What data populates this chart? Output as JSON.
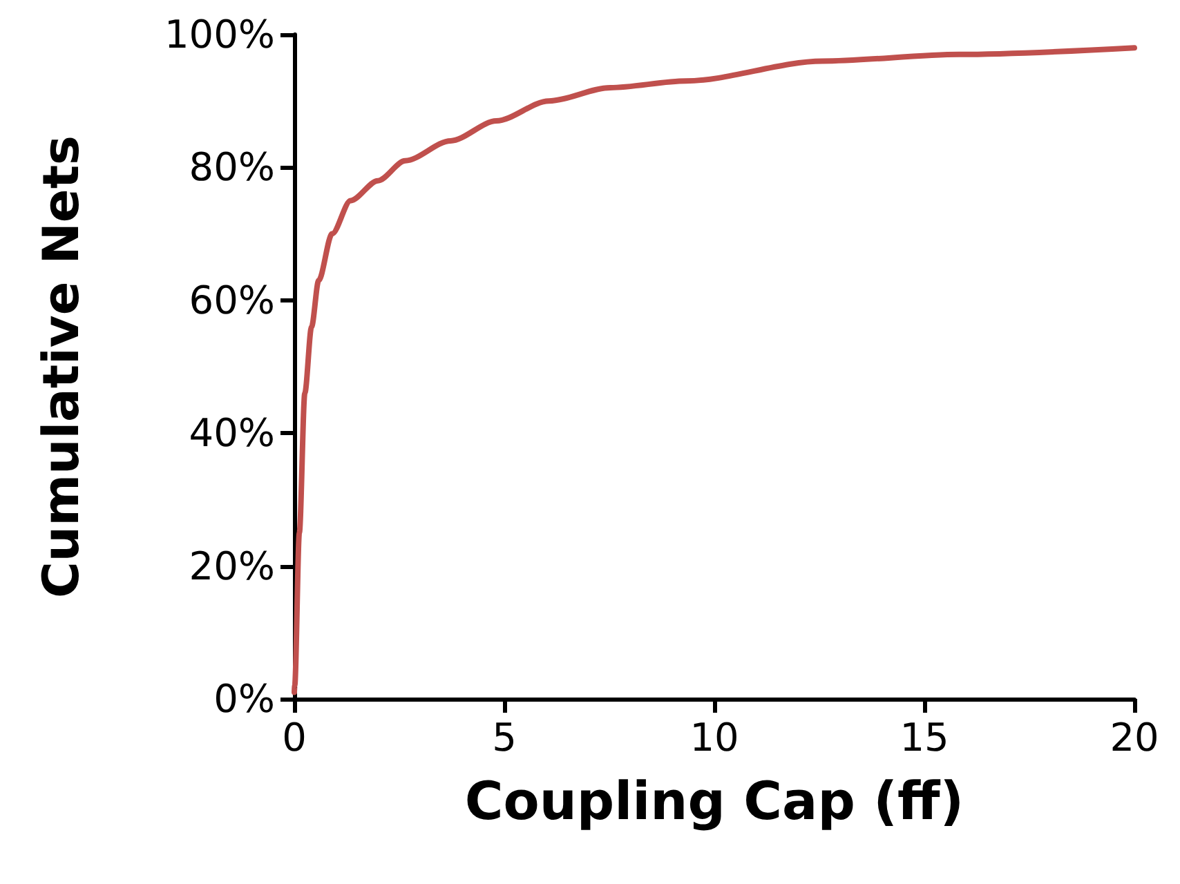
{
  "chart_data": {
    "type": "line",
    "xlabel": "Coupling Cap (ff)",
    "ylabel": "Cumulative Nets",
    "x": [
      0,
      0.01,
      0.12,
      0.25,
      0.41,
      0.58,
      0.9,
      1.34,
      1.99,
      2.64,
      3.72,
      4.81,
      6.06,
      7.52,
      9.32,
      12.57,
      15.83,
      20
    ],
    "series": [
      {
        "color": "#c0504d",
        "values": [
          1,
          2,
          25,
          46,
          56,
          63,
          70,
          75,
          78,
          81,
          84,
          87,
          90,
          92,
          93,
          96,
          97,
          98
        ]
      }
    ],
    "xlim": [
      0,
      20
    ],
    "xticks": [
      0,
      5,
      10,
      15,
      20
    ],
    "ylim": [
      0,
      100
    ],
    "yticks": [
      {
        "value": 0,
        "label": "0%"
      },
      {
        "value": 20,
        "label": "20%"
      },
      {
        "value": 40,
        "label": "40%"
      },
      {
        "value": 60,
        "label": "60%"
      },
      {
        "value": 80,
        "label": "80%"
      },
      {
        "value": 100,
        "label": "100%"
      }
    ],
    "grid": false,
    "marker": "none",
    "line_style": "solid"
  }
}
